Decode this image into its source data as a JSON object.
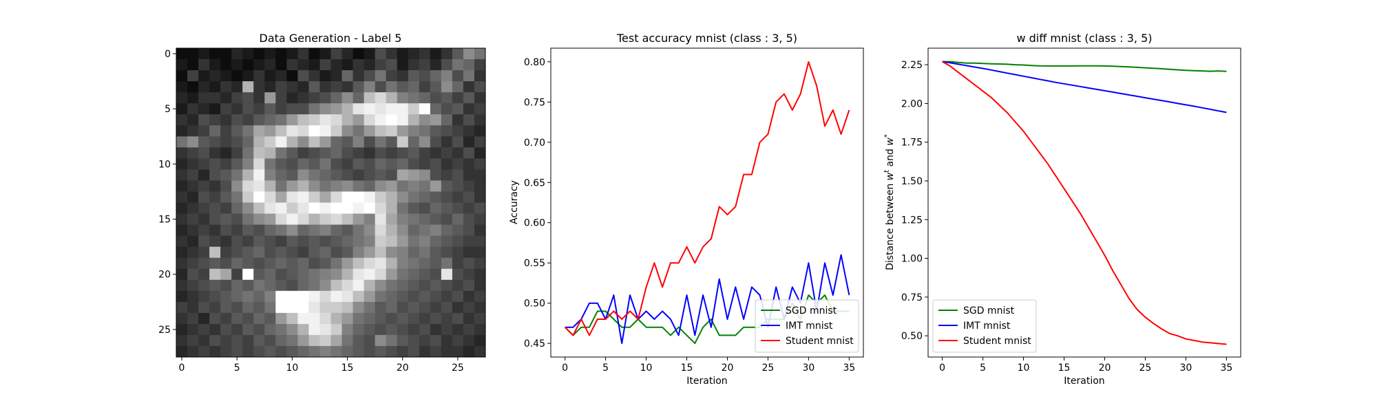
{
  "chart_data": [
    {
      "type": "heatmap",
      "title": "Data Generation - Label 5",
      "xticks": [
        "0",
        "5",
        "10",
        "15",
        "20",
        "25"
      ],
      "yticks": [
        "0",
        "5",
        "10",
        "15",
        "20",
        "25"
      ],
      "xlim": [
        -0.5,
        27.5
      ],
      "ylim": [
        27.5,
        -0.5
      ],
      "colormap": "gray",
      "pixels": [
        [
          5,
          5,
          10,
          5,
          5,
          15,
          10,
          5,
          10,
          5,
          10,
          20,
          5,
          10,
          25,
          15,
          5,
          10,
          30,
          20,
          10,
          15,
          20,
          10,
          20,
          35,
          55,
          45
        ],
        [
          10,
          5,
          20,
          10,
          5,
          10,
          5,
          10,
          15,
          5,
          20,
          15,
          10,
          25,
          15,
          10,
          20,
          15,
          25,
          30,
          10,
          20,
          25,
          15,
          30,
          45,
          40,
          25
        ],
        [
          5,
          25,
          10,
          15,
          10,
          5,
          10,
          20,
          10,
          15,
          5,
          30,
          20,
          10,
          15,
          40,
          20,
          30,
          45,
          25,
          20,
          35,
          30,
          40,
          50,
          30,
          45,
          20
        ],
        [
          10,
          5,
          15,
          10,
          20,
          15,
          70,
          20,
          15,
          25,
          20,
          15,
          35,
          20,
          25,
          20,
          35,
          50,
          30,
          45,
          35,
          40,
          25,
          35,
          55,
          40,
          20,
          30
        ],
        [
          15,
          10,
          20,
          20,
          15,
          25,
          30,
          20,
          60,
          25,
          15,
          20,
          25,
          30,
          40,
          55,
          40,
          75,
          85,
          70,
          50,
          45,
          40,
          30,
          35,
          25,
          35,
          20
        ],
        [
          10,
          20,
          15,
          10,
          25,
          20,
          30,
          25,
          35,
          25,
          30,
          30,
          45,
          55,
          60,
          70,
          90,
          95,
          90,
          95,
          95,
          80,
          100,
          40,
          30,
          35,
          20,
          25
        ],
        [
          20,
          15,
          30,
          25,
          20,
          30,
          25,
          35,
          40,
          45,
          60,
          75,
          80,
          90,
          85,
          70,
          60,
          85,
          95,
          100,
          95,
          70,
          55,
          60,
          40,
          20,
          30,
          20
        ],
        [
          15,
          20,
          25,
          40,
          25,
          35,
          45,
          65,
          60,
          75,
          90,
          85,
          100,
          95,
          80,
          55,
          45,
          60,
          75,
          80,
          60,
          50,
          45,
          35,
          30,
          25,
          20,
          15
        ],
        [
          45,
          55,
          35,
          30,
          25,
          30,
          40,
          70,
          80,
          95,
          70,
          55,
          75,
          60,
          40,
          35,
          50,
          30,
          45,
          35,
          80,
          40,
          55,
          30,
          20,
          30,
          15,
          25
        ],
        [
          20,
          25,
          30,
          20,
          15,
          25,
          45,
          75,
          70,
          45,
          35,
          25,
          30,
          35,
          40,
          30,
          25,
          20,
          30,
          25,
          30,
          35,
          25,
          20,
          25,
          20,
          30,
          15
        ],
        [
          15,
          20,
          25,
          30,
          25,
          35,
          50,
          85,
          45,
          35,
          30,
          40,
          35,
          45,
          30,
          25,
          35,
          30,
          40,
          35,
          40,
          30,
          25,
          30,
          20,
          25,
          20,
          25
        ],
        [
          20,
          25,
          15,
          30,
          35,
          45,
          70,
          95,
          50,
          40,
          35,
          55,
          45,
          40,
          35,
          30,
          25,
          30,
          35,
          30,
          65,
          60,
          55,
          30,
          25,
          30,
          20,
          20
        ],
        [
          15,
          20,
          25,
          20,
          30,
          55,
          85,
          90,
          70,
          45,
          60,
          70,
          55,
          45,
          50,
          55,
          45,
          40,
          55,
          60,
          45,
          50,
          45,
          60,
          35,
          30,
          25,
          20
        ],
        [
          20,
          15,
          30,
          25,
          35,
          45,
          80,
          100,
          85,
          65,
          90,
          95,
          80,
          65,
          85,
          100,
          100,
          95,
          80,
          70,
          55,
          45,
          40,
          35,
          30,
          25,
          30,
          20
        ],
        [
          15,
          20,
          25,
          30,
          25,
          40,
          55,
          75,
          90,
          95,
          80,
          90,
          100,
          95,
          100,
          100,
          95,
          100,
          85,
          70,
          45,
          35,
          30,
          40,
          35,
          30,
          25,
          30
        ],
        [
          20,
          25,
          20,
          30,
          35,
          30,
          45,
          55,
          60,
          85,
          95,
          85,
          70,
          80,
          85,
          75,
          60,
          50,
          90,
          65,
          50,
          45,
          40,
          35,
          30,
          40,
          30,
          25
        ],
        [
          15,
          20,
          25,
          20,
          30,
          25,
          35,
          30,
          40,
          45,
          55,
          40,
          45,
          50,
          40,
          35,
          45,
          55,
          85,
          70,
          55,
          40,
          45,
          50,
          40,
          35,
          30,
          20
        ],
        [
          20,
          15,
          30,
          25,
          20,
          30,
          25,
          35,
          30,
          25,
          35,
          30,
          35,
          30,
          35,
          40,
          45,
          50,
          80,
          75,
          60,
          45,
          50,
          40,
          35,
          30,
          25,
          25
        ],
        [
          15,
          20,
          25,
          75,
          25,
          30,
          35,
          40,
          30,
          35,
          30,
          25,
          35,
          40,
          30,
          35,
          50,
          60,
          75,
          55,
          50,
          40,
          45,
          35,
          30,
          25,
          20,
          20
        ],
        [
          20,
          25,
          30,
          35,
          30,
          40,
          35,
          30,
          35,
          40,
          35,
          40,
          30,
          35,
          45,
          60,
          75,
          85,
          90,
          70,
          50,
          45,
          40,
          35,
          45,
          25,
          30,
          25
        ],
        [
          15,
          30,
          25,
          75,
          65,
          25,
          100,
          35,
          40,
          30,
          35,
          40,
          45,
          50,
          55,
          70,
          90,
          95,
          85,
          60,
          45,
          40,
          35,
          30,
          90,
          30,
          25,
          20
        ],
        [
          20,
          25,
          30,
          35,
          30,
          40,
          35,
          45,
          40,
          35,
          30,
          40,
          45,
          55,
          75,
          85,
          95,
          70,
          55,
          45,
          40,
          35,
          30,
          35,
          30,
          25,
          30,
          20
        ],
        [
          15,
          20,
          25,
          30,
          35,
          40,
          45,
          40,
          50,
          100,
          100,
          100,
          95,
          85,
          95,
          90,
          75,
          60,
          45,
          40,
          35,
          30,
          35,
          30,
          25,
          30,
          20,
          25
        ],
        [
          25,
          20,
          30,
          25,
          35,
          30,
          40,
          35,
          45,
          100,
          100,
          100,
          90,
          80,
          80,
          75,
          55,
          45,
          35,
          40,
          30,
          35,
          30,
          25,
          30,
          20,
          25,
          20
        ],
        [
          20,
          25,
          15,
          30,
          25,
          35,
          30,
          40,
          35,
          60,
          75,
          95,
          95,
          85,
          70,
          60,
          45,
          40,
          35,
          30,
          35,
          30,
          25,
          30,
          25,
          30,
          20,
          25
        ],
        [
          15,
          20,
          25,
          20,
          30,
          25,
          35,
          30,
          40,
          45,
          55,
          70,
          95,
          90,
          80,
          50,
          40,
          35,
          30,
          35,
          30,
          25,
          30,
          20,
          25,
          20,
          25,
          20
        ],
        [
          20,
          25,
          20,
          30,
          25,
          30,
          25,
          35,
          30,
          40,
          45,
          60,
          75,
          80,
          65,
          45,
          35,
          30,
          55,
          45,
          35,
          30,
          25,
          30,
          20,
          25,
          20,
          15
        ],
        [
          15,
          20,
          25,
          20,
          25,
          30,
          25,
          30,
          35,
          30,
          35,
          40,
          45,
          50,
          45,
          40,
          35,
          30,
          35,
          30,
          25,
          30,
          20,
          25,
          20,
          20,
          15,
          20
        ]
      ]
    },
    {
      "type": "line",
      "title": "Test accuracy mnist (class : 3, 5)",
      "xlabel": "Iteration",
      "ylabel": "Accuracy",
      "xlim": [
        -1.75,
        36.75
      ],
      "ylim": [
        0.433,
        0.817
      ],
      "xticks": [
        0,
        5,
        10,
        15,
        20,
        25,
        30,
        35
      ],
      "yticks": [
        0.45,
        0.5,
        0.55,
        0.6,
        0.65,
        0.7,
        0.75,
        0.8
      ],
      "ytick_labels": [
        "0.45",
        "0.50",
        "0.55",
        "0.60",
        "0.65",
        "0.70",
        "0.75",
        "0.80"
      ],
      "legend_position": "lower right",
      "x": [
        0,
        1,
        2,
        3,
        4,
        5,
        6,
        7,
        8,
        9,
        10,
        11,
        12,
        13,
        14,
        15,
        16,
        17,
        18,
        19,
        20,
        21,
        22,
        23,
        24,
        25,
        26,
        27,
        28,
        29,
        30,
        31,
        32,
        33,
        34,
        35
      ],
      "series": [
        {
          "name": "SGD mnist",
          "color": "#008000",
          "values": [
            0.47,
            0.46,
            0.47,
            0.47,
            0.49,
            0.49,
            0.48,
            0.47,
            0.47,
            0.48,
            0.47,
            0.47,
            0.47,
            0.46,
            0.47,
            0.46,
            0.45,
            0.47,
            0.48,
            0.46,
            0.46,
            0.46,
            0.47,
            0.47,
            0.47,
            0.48,
            0.48,
            0.48,
            0.5,
            0.48,
            0.51,
            0.5,
            0.51,
            0.49,
            0.49,
            0.49
          ]
        },
        {
          "name": "IMT mnist",
          "color": "#0000ff",
          "values": [
            0.47,
            0.47,
            0.48,
            0.5,
            0.5,
            0.48,
            0.51,
            0.45,
            0.51,
            0.48,
            0.49,
            0.48,
            0.49,
            0.48,
            0.46,
            0.51,
            0.46,
            0.51,
            0.47,
            0.53,
            0.48,
            0.52,
            0.48,
            0.52,
            0.51,
            0.47,
            0.52,
            0.48,
            0.52,
            0.5,
            0.55,
            0.49,
            0.55,
            0.51,
            0.56,
            0.51
          ]
        },
        {
          "name": "Student mnist",
          "color": "#ff0000",
          "values": [
            0.47,
            0.46,
            0.48,
            0.46,
            0.48,
            0.48,
            0.49,
            0.48,
            0.49,
            0.48,
            0.52,
            0.55,
            0.52,
            0.55,
            0.55,
            0.57,
            0.55,
            0.57,
            0.58,
            0.62,
            0.61,
            0.62,
            0.66,
            0.66,
            0.7,
            0.71,
            0.75,
            0.76,
            0.74,
            0.76,
            0.8,
            0.77,
            0.72,
            0.74,
            0.71,
            0.74
          ]
        }
      ]
    },
    {
      "type": "line",
      "title": "w diff mnist (class : 3, 5)",
      "xlabel": "Iteration",
      "ylabel": "Distance between w^t and w^*",
      "ylabel_parts": {
        "prefix": "Distance between ",
        "w1": "w",
        "sup1": "t",
        "mid": " and ",
        "w2": "w",
        "sup2": "*"
      },
      "xlim": [
        -1.75,
        36.75
      ],
      "ylim": [
        0.363,
        2.357
      ],
      "xticks": [
        0,
        5,
        10,
        15,
        20,
        25,
        30,
        35
      ],
      "yticks": [
        0.5,
        0.75,
        1.0,
        1.25,
        1.5,
        1.75,
        2.0,
        2.25
      ],
      "ytick_labels": [
        "0.50",
        "0.75",
        "1.00",
        "1.25",
        "1.50",
        "1.75",
        "2.00",
        "2.25"
      ],
      "legend_position": "lower left",
      "x": [
        0,
        1,
        2,
        3,
        4,
        5,
        6,
        7,
        8,
        9,
        10,
        11,
        12,
        13,
        14,
        15,
        16,
        17,
        18,
        19,
        20,
        21,
        22,
        23,
        24,
        25,
        26,
        27,
        28,
        29,
        30,
        31,
        32,
        33,
        34,
        35
      ],
      "series": [
        {
          "name": "SGD mnist",
          "color": "#008000",
          "values": [
            2.27,
            2.27,
            2.265,
            2.26,
            2.26,
            2.258,
            2.256,
            2.255,
            2.253,
            2.25,
            2.248,
            2.245,
            2.243,
            2.242,
            2.242,
            2.242,
            2.242,
            2.243,
            2.243,
            2.243,
            2.242,
            2.24,
            2.238,
            2.236,
            2.233,
            2.23,
            2.227,
            2.224,
            2.22,
            2.217,
            2.214,
            2.212,
            2.21,
            2.208,
            2.21,
            2.207
          ]
        },
        {
          "name": "IMT mnist",
          "color": "#0000ff",
          "values": [
            2.27,
            2.262,
            2.253,
            2.244,
            2.235,
            2.226,
            2.216,
            2.206,
            2.196,
            2.186,
            2.176,
            2.166,
            2.156,
            2.146,
            2.136,
            2.127,
            2.118,
            2.109,
            2.1,
            2.091,
            2.082,
            2.073,
            2.064,
            2.055,
            2.046,
            2.037,
            2.028,
            2.019,
            2.01,
            2.0,
            1.991,
            1.982,
            1.972,
            1.962,
            1.952,
            1.942
          ]
        },
        {
          "name": "Student mnist",
          "color": "#ff0000",
          "values": [
            2.27,
            2.24,
            2.2,
            2.16,
            2.12,
            2.08,
            2.04,
            1.99,
            1.94,
            1.88,
            1.82,
            1.75,
            1.68,
            1.61,
            1.53,
            1.45,
            1.37,
            1.29,
            1.2,
            1.11,
            1.02,
            0.92,
            0.83,
            0.74,
            0.67,
            0.62,
            0.58,
            0.545,
            0.515,
            0.5,
            0.48,
            0.47,
            0.46,
            0.455,
            0.45,
            0.445
          ]
        }
      ]
    }
  ]
}
